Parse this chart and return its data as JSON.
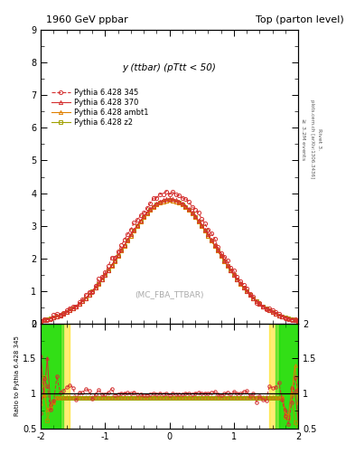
{
  "title_left": "1960 GeV ppbar",
  "title_right": "Top (parton level)",
  "plot_label": "y (ttbar) (pTtt < 50)",
  "watermark": "(MC_FBA_TTBAR)",
  "right_label_top": "plots.cern.ch [arXiv:1306.3436]",
  "right_label_bot": "≥ 3.2M events",
  "rivet_label": "Rivet 3.",
  "ylabel_ratio": "Ratio to Pythia 6.428 345",
  "ylim_main": [
    0,
    9
  ],
  "ylim_ratio": [
    0.5,
    2.0
  ],
  "xlim": [
    -2.0,
    2.0
  ],
  "series_labels": [
    "Pythia 6.428 345",
    "Pythia 6.428 370",
    "Pythia 6.428 ambt1",
    "Pythia 6.428 z2"
  ],
  "series_colors": [
    "#d43030",
    "#d43030",
    "#e08000",
    "#a0a000"
  ],
  "series_markers": [
    "o",
    "^",
    "^",
    "s"
  ],
  "series_ls": [
    "--",
    "-",
    "-",
    "-"
  ],
  "background_color": "#ffffff",
  "band_color_green": "#00dd00",
  "band_color_yellow": "#ffdd00",
  "gaussian_params": [
    {
      "amp": 4.05,
      "sigma": 0.73
    },
    {
      "amp": 3.82,
      "sigma": 0.73
    },
    {
      "amp": 3.78,
      "sigma": 0.73
    },
    {
      "amp": 3.78,
      "sigma": 0.73
    }
  ]
}
